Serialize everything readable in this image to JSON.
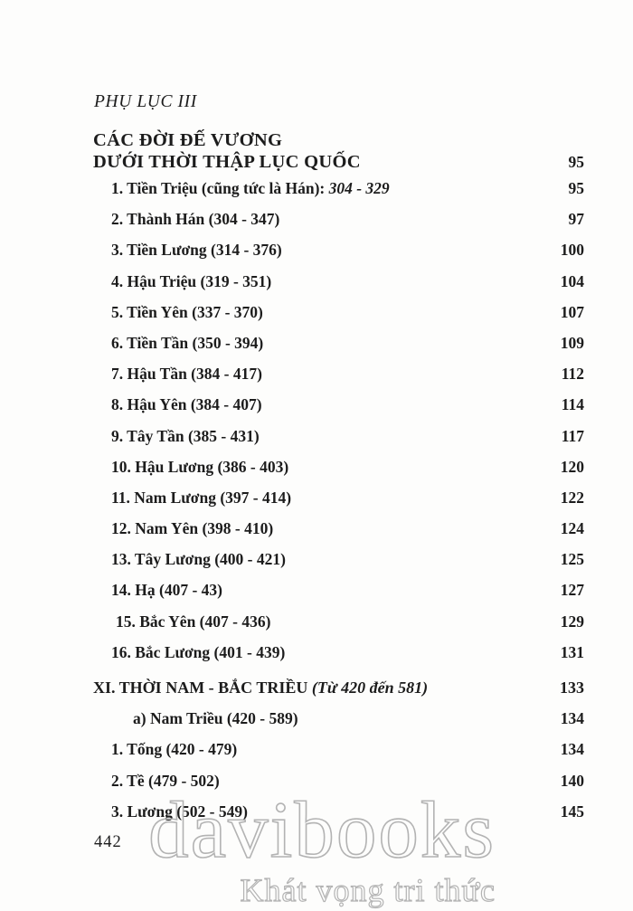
{
  "page": {
    "appendix_label": "PHỤ LỤC III",
    "title_line1": "CÁC ĐỜI ĐẾ VƯƠNG",
    "title_line2": "DƯỚI THỜI THẬP LỤC QUỐC",
    "title_page": "95",
    "folio": "442"
  },
  "toc": {
    "entries": [
      {
        "style": "item",
        "text": "1. Tiền Triệu (cũng tức là Hán): ",
        "italic": "304 - 329",
        "page": "95"
      },
      {
        "style": "item",
        "text": "2. Thành Hán (304 - 347)",
        "italic": "",
        "page": "97"
      },
      {
        "style": "item",
        "text": "3. Tiền Lương (314 - 376)",
        "italic": "",
        "page": "100"
      },
      {
        "style": "item",
        "text": "4. Hậu Triệu (319 - 351)",
        "italic": "",
        "page": "104"
      },
      {
        "style": "item",
        "text": "5. Tiền Yên (337 - 370)",
        "italic": "",
        "page": "107"
      },
      {
        "style": "item",
        "text": "6. Tiền Tần (350 - 394)",
        "italic": "",
        "page": "109"
      },
      {
        "style": "item",
        "text": "7. Hậu Tần (384 - 417)",
        "italic": "",
        "page": "112"
      },
      {
        "style": "item",
        "text": "8. Hậu Yên (384 - 407)",
        "italic": "",
        "page": "114"
      },
      {
        "style": "item",
        "text": "9. Tây Tần (385 - 431)",
        "italic": "",
        "page": "117"
      },
      {
        "style": "item",
        "text": "10. Hậu Lương (386 - 403)",
        "italic": "",
        "page": "120"
      },
      {
        "style": "item",
        "text": "11. Nam Lương (397 - 414)",
        "italic": "",
        "page": "122"
      },
      {
        "style": "item",
        "text": "12. Nam Yên (398 - 410)",
        "italic": "",
        "page": "124"
      },
      {
        "style": "item",
        "text": "13. Tây Lương (400 - 421)",
        "italic": "",
        "page": "125"
      },
      {
        "style": "item",
        "text": "14. Hạ (407 - 43)",
        "italic": "",
        "page": "127"
      },
      {
        "style": "item shift",
        "text": "15. Bắc Yên (407 - 436)",
        "italic": "",
        "page": "129"
      },
      {
        "style": "item",
        "text": "16. Bắc Lương (401 - 439)",
        "italic": "",
        "page": "131"
      },
      {
        "style": "section",
        "text": "XI. THỜI NAM - BẮC TRIỀU ",
        "italic": "(Từ 420 đến 581)",
        "page": "133"
      },
      {
        "style": "sub",
        "text": "a) Nam Triều (420 - 589)",
        "italic": "",
        "page": "134"
      },
      {
        "style": "item",
        "text": "1. Tống (420 - 479)",
        "italic": "",
        "page": "134"
      },
      {
        "style": "item",
        "text": "2. Tề (479 - 502)",
        "italic": "",
        "page": "140"
      },
      {
        "style": "item",
        "text": "3. Lương (502 - 549)",
        "italic": "",
        "page": "145"
      }
    ]
  },
  "watermark": {
    "brand": "davibooks",
    "tagline": "Khát vọng tri thức"
  },
  "colors": {
    "ink": "#1c1c1c",
    "paper": "#fdfdfc",
    "watermark_outline": "#b3b3b3"
  }
}
